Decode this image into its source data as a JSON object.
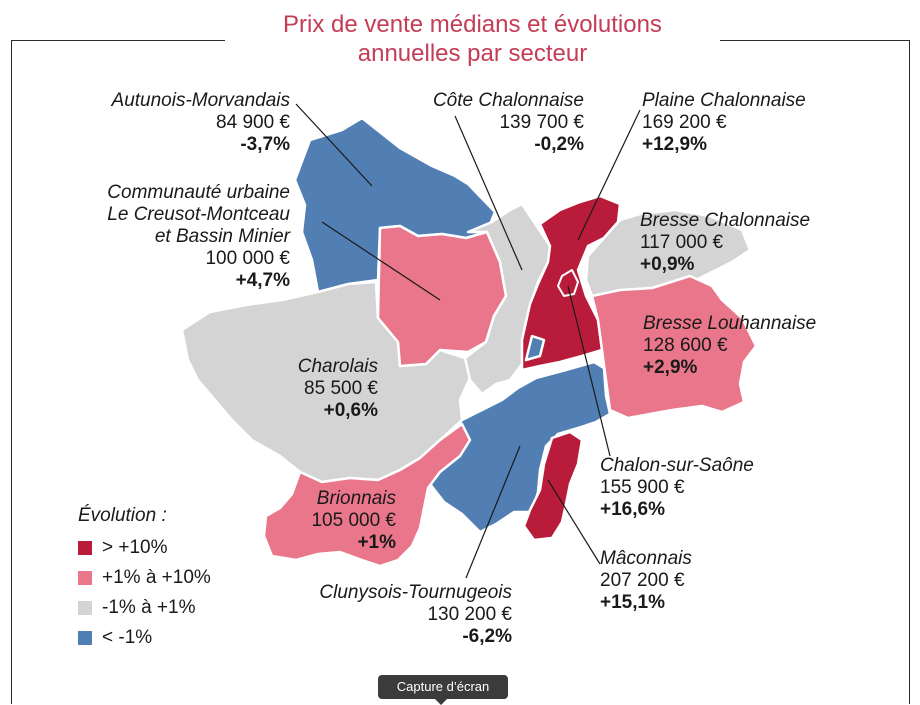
{
  "title_line1": "Prix de vente médians et évolutions",
  "title_line2": "annuelles par secteur",
  "colors": {
    "dark_red": "#b91c3a",
    "pink": "#e9768a",
    "grey": "#d4d4d4",
    "blue": "#527fb3",
    "title": "#c43c55"
  },
  "sectors": [
    {
      "id": "autunois",
      "name": "Autunois-Morvandais",
      "price": "84 900 €",
      "evolution": "-3,7%",
      "class": "< -1%"
    },
    {
      "id": "cote",
      "name": "Côte Chalonnaise",
      "price": "139 700 €",
      "evolution": "-0,2%",
      "class": "-1% à +1%"
    },
    {
      "id": "plaine",
      "name": "Plaine Chalonnaise",
      "price": "169 200 €",
      "evolution": "+12,9%",
      "class": "> +10%"
    },
    {
      "id": "creusot",
      "name_lines": [
        "Communauté urbaine",
        "Le Creusot-Montceau",
        "et Bassin Minier"
      ],
      "price": "100 000 €",
      "evolution": "+4,7%",
      "class": "+1% à +10%"
    },
    {
      "id": "bresse_ch",
      "name": "Bresse Chalonnaise",
      "price": "117 000 €",
      "evolution": "+0,9%",
      "class": "-1% à +1%"
    },
    {
      "id": "bresse_lou",
      "name": "Bresse Louhannaise",
      "price": "128 600 €",
      "evolution": "+2,9%",
      "class": "+1% à +10%"
    },
    {
      "id": "charolais",
      "name": "Charolais",
      "price": "85 500 €",
      "evolution": "+0,6%",
      "class": "-1% à +1%"
    },
    {
      "id": "chalon",
      "name": "Chalon-sur-Saône",
      "price": "155 900 €",
      "evolution": "+16,6%",
      "class": "> +10%"
    },
    {
      "id": "brionnais",
      "name": "Brionnais",
      "price": "105 000 €",
      "evolution": "+1%",
      "class": "+1% à +10%"
    },
    {
      "id": "maconnais",
      "name": "Mâconnais",
      "price": "207 200 €",
      "evolution": "+15,1%",
      "class": "> +10%"
    },
    {
      "id": "clunysois",
      "name": "Clunysois-Tournugeois",
      "price": "130 200 €",
      "evolution": "-6,2%",
      "class": "< -1%"
    }
  ],
  "legend": {
    "title": "Évolution :",
    "items": [
      {
        "label": "> +10%",
        "color": "#b91c3a"
      },
      {
        "label": "+1% à +10%",
        "color": "#e9768a"
      },
      {
        "label": "-1% à +1%",
        "color": "#d4d4d4"
      },
      {
        "label": "< -1%",
        "color": "#527fb3"
      }
    ]
  },
  "tooltip": "Capture d’écran"
}
